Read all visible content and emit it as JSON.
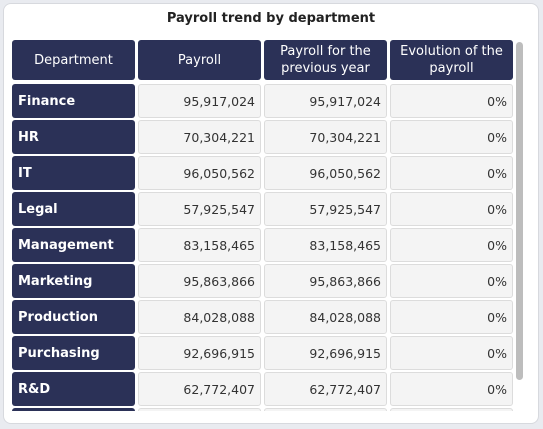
{
  "widget": {
    "title": "Payroll trend by department"
  },
  "table": {
    "headers": [
      "Department",
      "Payroll",
      "Payroll for the previous year",
      "Evolution of the payroll"
    ],
    "rows": [
      {
        "department": "Finance",
        "payroll": "95,917,024",
        "previous": "95,917,024",
        "evolution": "0%"
      },
      {
        "department": "HR",
        "payroll": "70,304,221",
        "previous": "70,304,221",
        "evolution": "0%"
      },
      {
        "department": "IT",
        "payroll": "96,050,562",
        "previous": "96,050,562",
        "evolution": "0%"
      },
      {
        "department": "Legal",
        "payroll": "57,925,547",
        "previous": "57,925,547",
        "evolution": "0%"
      },
      {
        "department": "Management",
        "payroll": "83,158,465",
        "previous": "83,158,465",
        "evolution": "0%"
      },
      {
        "department": "Marketing",
        "payroll": "95,863,866",
        "previous": "95,863,866",
        "evolution": "0%"
      },
      {
        "department": "Production",
        "payroll": "84,028,088",
        "previous": "84,028,088",
        "evolution": "0%"
      },
      {
        "department": "Purchasing",
        "payroll": "92,696,915",
        "previous": "92,696,915",
        "evolution": "0%"
      },
      {
        "department": "R&D",
        "payroll": "62,772,407",
        "previous": "62,772,407",
        "evolution": "0%"
      },
      {
        "department": "",
        "payroll": "",
        "previous": "",
        "evolution": ""
      }
    ]
  },
  "colors": {
    "header_bg": "#2b3157",
    "cell_bg": "#f4f4f4"
  }
}
